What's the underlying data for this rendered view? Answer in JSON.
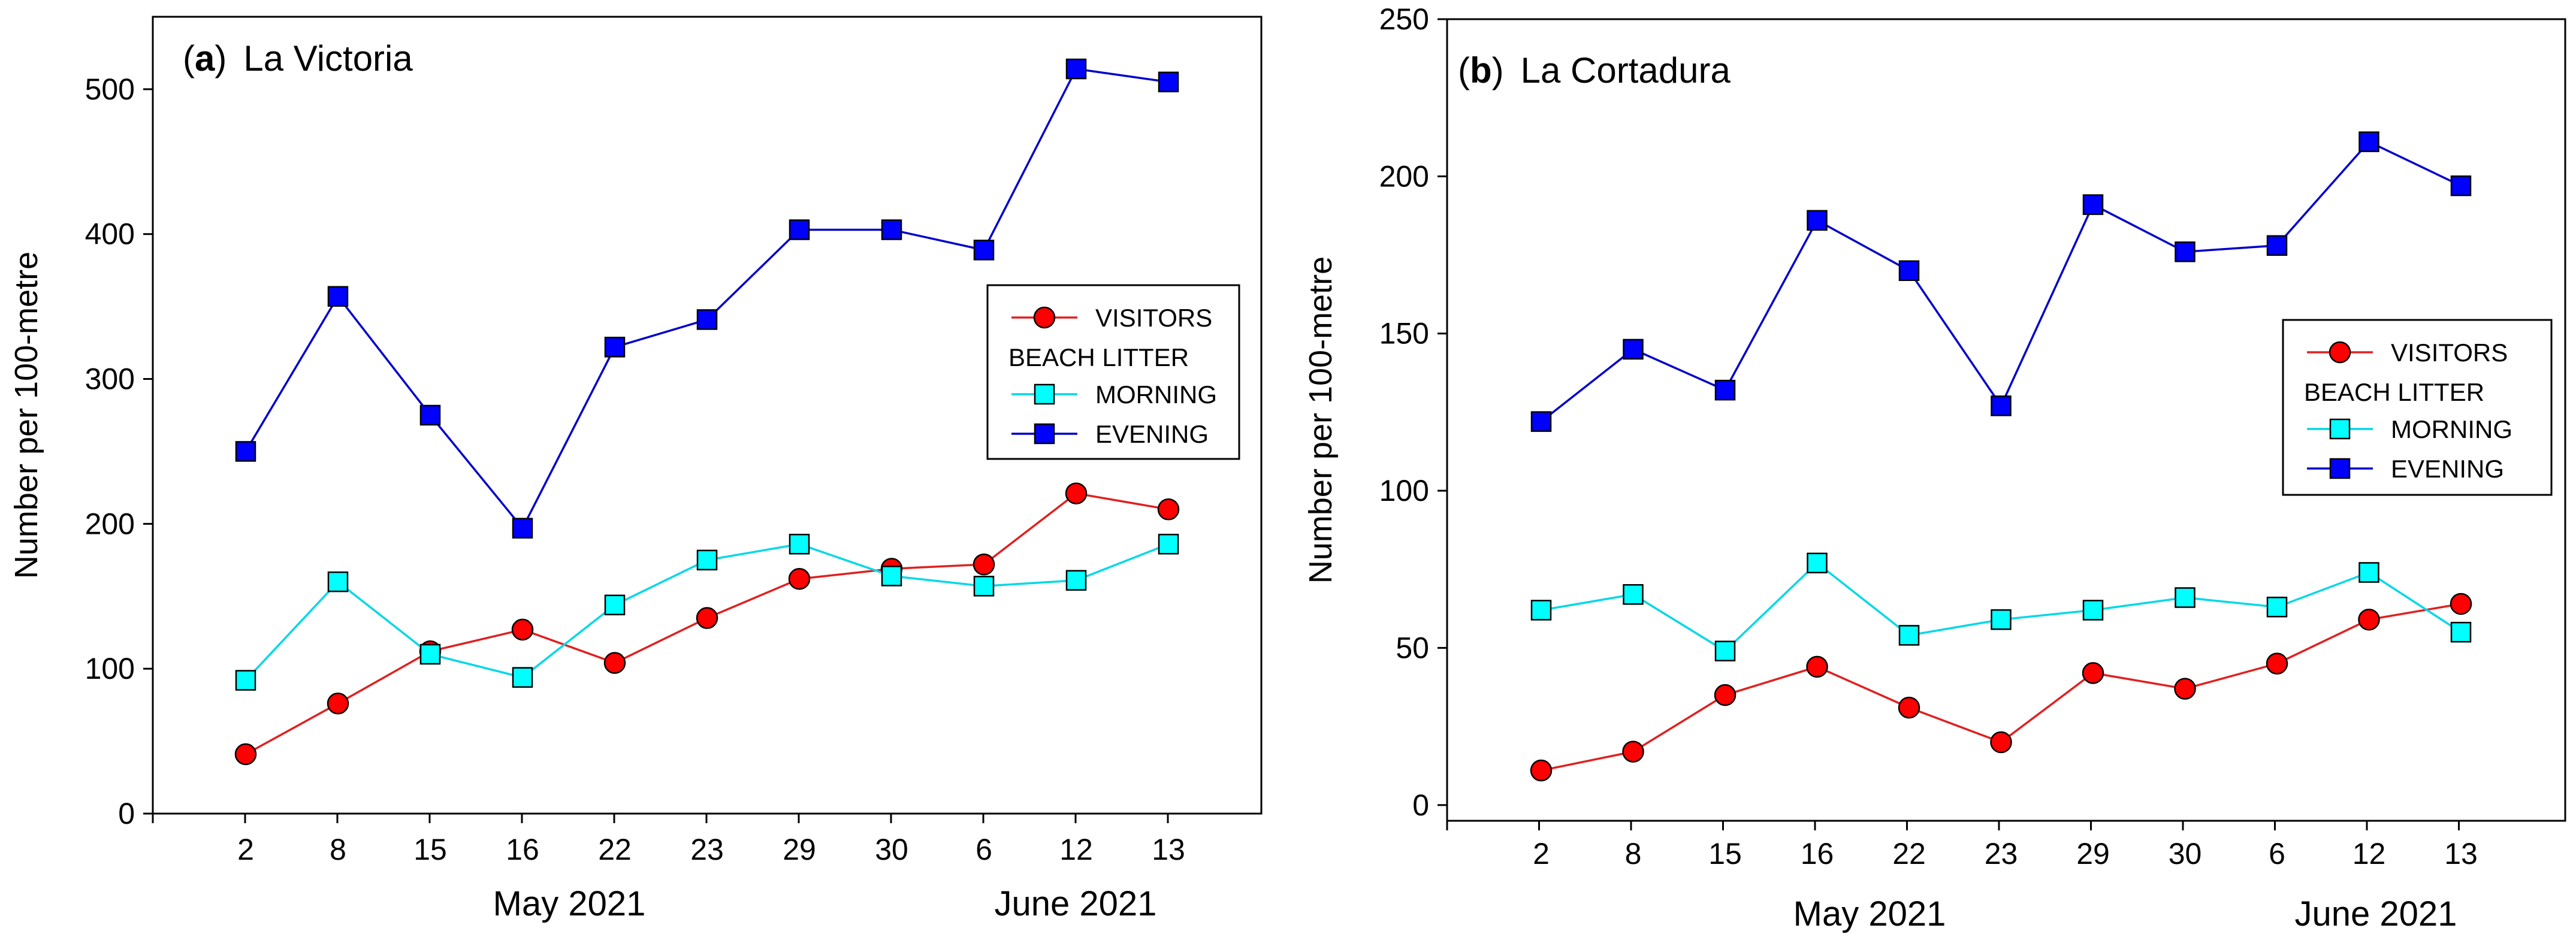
{
  "chart_data": [
    {
      "type": "line",
      "panel_letter": "a",
      "title": "La Victoria",
      "ylabel": "Number per 100-metre",
      "ylim": [
        0,
        550
      ],
      "yticks": [
        0,
        100,
        200,
        300,
        400,
        500
      ],
      "categories": [
        "2",
        "8",
        "15",
        "16",
        "22",
        "23",
        "29",
        "30",
        "6",
        "12",
        "13"
      ],
      "month_labels": [
        "May 2021",
        "June 2021"
      ],
      "legend_heading": "BEACH LITTER",
      "legend_position": "right",
      "series": [
        {
          "name": "VISITORS",
          "marker": "circle",
          "color": "#ff0000",
          "line_color": "#e02020",
          "values": [
            41,
            76,
            112,
            127,
            104,
            135,
            162,
            169,
            172,
            221,
            210
          ]
        },
        {
          "name": "MORNING",
          "marker": "square",
          "color": "#00ffff",
          "line_color": "#00d8e8",
          "values": [
            92,
            160,
            110,
            94,
            144,
            175,
            186,
            164,
            157,
            161,
            186
          ]
        },
        {
          "name": "EVENING",
          "marker": "square",
          "color": "#0000ff",
          "line_color": "#0000cc",
          "values": [
            250,
            357,
            275,
            197,
            322,
            341,
            403,
            403,
            389,
            514,
            505
          ]
        }
      ]
    },
    {
      "type": "line",
      "panel_letter": "b",
      "title": "La Cortadura",
      "ylabel": "Number per 100-metre",
      "ylim": [
        -5,
        250
      ],
      "yticks": [
        0,
        50,
        100,
        150,
        200,
        250
      ],
      "categories": [
        "2",
        "8",
        "15",
        "16",
        "22",
        "23",
        "29",
        "30",
        "6",
        "12",
        "13"
      ],
      "month_labels": [
        "May 2021",
        "June 2021"
      ],
      "legend_heading": "BEACH LITTER",
      "legend_position": "right",
      "series": [
        {
          "name": "VISITORS",
          "marker": "circle",
          "color": "#ff0000",
          "line_color": "#e02020",
          "values": [
            11,
            17,
            35,
            44,
            31,
            20,
            42,
            37,
            45,
            59,
            64
          ]
        },
        {
          "name": "MORNING",
          "marker": "square",
          "color": "#00ffff",
          "line_color": "#00d8e8",
          "values": [
            62,
            67,
            49,
            77,
            54,
            59,
            62,
            66,
            63,
            74,
            55
          ]
        },
        {
          "name": "EVENING",
          "marker": "square",
          "color": "#0000ff",
          "line_color": "#0000cc",
          "values": [
            122,
            145,
            132,
            186,
            170,
            127,
            191,
            176,
            178,
            211,
            197
          ]
        }
      ]
    }
  ]
}
